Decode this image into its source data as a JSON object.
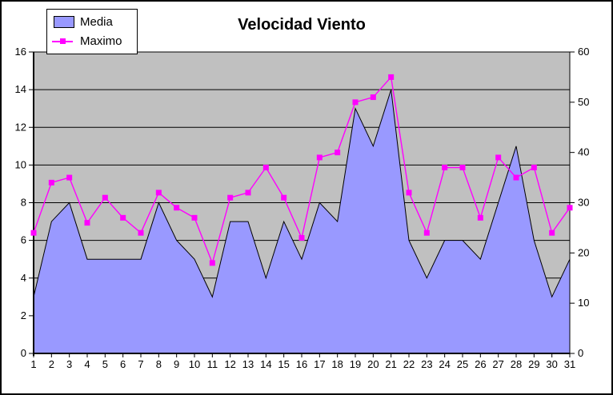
{
  "chart": {
    "title": "Velocidad Viento",
    "legend": {
      "items": [
        {
          "label": "Media",
          "swatch": "area",
          "color": "#9999FF"
        },
        {
          "label": "Maximo",
          "swatch": "line-marker",
          "color": "#FF00FF"
        }
      ]
    }
  },
  "chart_data": {
    "type": "combo",
    "title": "Velocidad Viento",
    "legend_position": "top-left",
    "plot_bg": "#C0C0C0",
    "grid": "horizontal",
    "categories": [
      1,
      2,
      3,
      4,
      5,
      6,
      7,
      8,
      9,
      10,
      11,
      12,
      13,
      14,
      15,
      16,
      17,
      18,
      19,
      20,
      21,
      22,
      23,
      24,
      25,
      26,
      27,
      28,
      29,
      30,
      31
    ],
    "series": [
      {
        "name": "Media",
        "type": "area",
        "axis": "left",
        "fill": "#9999FF",
        "stroke": "#000000",
        "values": [
          3,
          7,
          8,
          5,
          5,
          5,
          5,
          8,
          6,
          5,
          3,
          7,
          7,
          4,
          7,
          5,
          8,
          7,
          13,
          11,
          14,
          6,
          4,
          6,
          6,
          5,
          8,
          11,
          6,
          3,
          5
        ]
      },
      {
        "name": "Maximo",
        "type": "line",
        "axis": "right",
        "color": "#FF00FF",
        "marker": "square",
        "values": [
          24,
          34,
          35,
          26,
          31,
          27,
          24,
          32,
          29,
          27,
          18,
          31,
          32,
          37,
          31,
          23,
          39,
          40,
          50,
          51,
          55,
          32,
          24,
          37,
          37,
          27,
          39,
          35,
          37,
          24,
          29
        ]
      }
    ],
    "left_axis": {
      "min": 0,
      "max": 16,
      "step": 2,
      "tick_labels": [
        "0",
        "2",
        "4",
        "6",
        "8",
        "10",
        "12",
        "14",
        "16"
      ]
    },
    "right_axis": {
      "min": 0,
      "max": 60,
      "step": 10,
      "tick_labels": [
        "0",
        "10",
        "20",
        "30",
        "40",
        "50",
        "60"
      ]
    }
  }
}
